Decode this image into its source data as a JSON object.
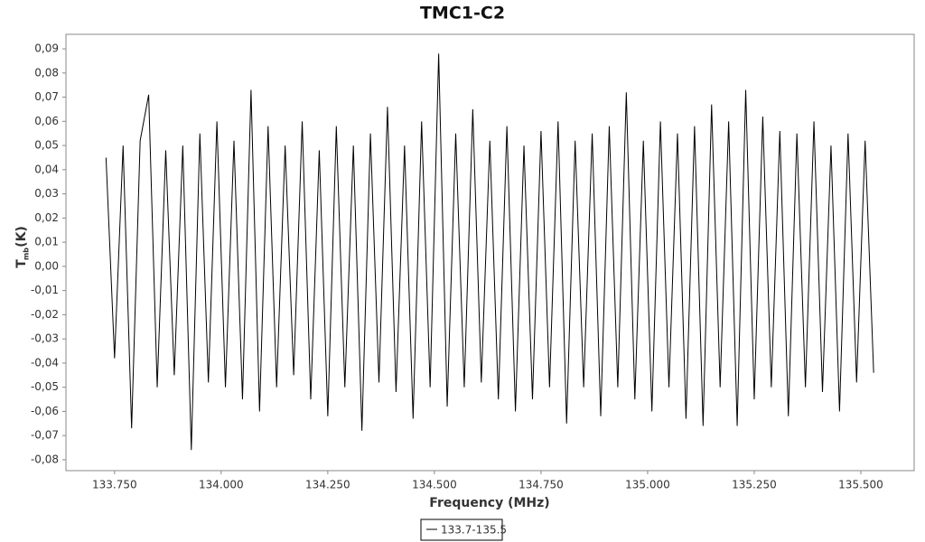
{
  "chart_data": {
    "type": "line",
    "title": "TMC1-C2",
    "x_label": "Frequency (MHz)",
    "y_label": "T",
    "y_label_sub": "mb",
    "y_label_unit": "(K)",
    "xlim": [
      133.636,
      135.625
    ],
    "ylim": [
      -0.0845,
      0.096
    ],
    "xticks": [
      {
        "value": 133.75,
        "label": "133.750"
      },
      {
        "value": 134.0,
        "label": "134.000"
      },
      {
        "value": 134.25,
        "label": "134.250"
      },
      {
        "value": 134.5,
        "label": "134.500"
      },
      {
        "value": 134.75,
        "label": "134.750"
      },
      {
        "value": 135.0,
        "label": "135.000"
      },
      {
        "value": 135.25,
        "label": "135.250"
      },
      {
        "value": 135.5,
        "label": "135.500"
      }
    ],
    "yticks": [
      {
        "value": -0.08,
        "label": "-0,08"
      },
      {
        "value": -0.07,
        "label": "-0,07"
      },
      {
        "value": -0.06,
        "label": "-0,06"
      },
      {
        "value": -0.05,
        "label": "-0,05"
      },
      {
        "value": -0.04,
        "label": "-0,04"
      },
      {
        "value": -0.03,
        "label": "-0,03"
      },
      {
        "value": -0.02,
        "label": "-0,02"
      },
      {
        "value": -0.01,
        "label": "-0,01"
      },
      {
        "value": 0,
        "label": "0,00"
      },
      {
        "value": 0.01,
        "label": "0,01"
      },
      {
        "value": 0.02,
        "label": "0,02"
      },
      {
        "value": 0.03,
        "label": "0,03"
      },
      {
        "value": 0.04,
        "label": "0,04"
      },
      {
        "value": 0.05,
        "label": "0,05"
      },
      {
        "value": 0.06,
        "label": "0,06"
      },
      {
        "value": 0.07,
        "label": "0,07"
      },
      {
        "value": 0.08,
        "label": "0,08"
      },
      {
        "value": 0.09,
        "label": "0,09"
      }
    ],
    "x": [
      133.73,
      133.75,
      133.77,
      133.79,
      133.81,
      133.83,
      133.85,
      133.87,
      133.89,
      133.91,
      133.93,
      133.95,
      133.97,
      133.99,
      134.01,
      134.03,
      134.05,
      134.07,
      134.09,
      134.11,
      134.13,
      134.15,
      134.17,
      134.19,
      134.21,
      134.23,
      134.25,
      134.27,
      134.29,
      134.31,
      134.33,
      134.35,
      134.37,
      134.39,
      134.41,
      134.43,
      134.45,
      134.47,
      134.49,
      134.51,
      134.53,
      134.55,
      134.57,
      134.59,
      134.61,
      134.63,
      134.65,
      134.67,
      134.69,
      134.71,
      134.73,
      134.75,
      134.77,
      134.79,
      134.81,
      134.83,
      134.85,
      134.87,
      134.89,
      134.91,
      134.93,
      134.95,
      134.97,
      134.99,
      135.01,
      135.03,
      135.05,
      135.07,
      135.09,
      135.11,
      135.13,
      135.15,
      135.17,
      135.19,
      135.21,
      135.23,
      135.25,
      135.27,
      135.29,
      135.31,
      135.33,
      135.35,
      135.37,
      135.39,
      135.41,
      135.43,
      135.45,
      135.47,
      135.49,
      135.51,
      135.53
    ],
    "series": [
      {
        "name": "133.7-135.5",
        "color": "#000000",
        "values": [
          0.045,
          -0.038,
          0.05,
          -0.067,
          0.052,
          0.071,
          -0.05,
          0.048,
          -0.045,
          0.05,
          -0.076,
          0.055,
          -0.048,
          0.06,
          -0.05,
          0.052,
          -0.055,
          0.073,
          -0.06,
          0.058,
          -0.05,
          0.05,
          -0.045,
          0.06,
          -0.055,
          0.048,
          -0.062,
          0.058,
          -0.05,
          0.05,
          -0.068,
          0.055,
          -0.048,
          0.066,
          -0.052,
          0.05,
          -0.063,
          0.06,
          -0.05,
          0.088,
          -0.058,
          0.055,
          -0.05,
          0.065,
          -0.048,
          0.052,
          -0.055,
          0.058,
          -0.06,
          0.05,
          -0.055,
          0.056,
          -0.05,
          0.06,
          -0.065,
          0.052,
          -0.05,
          0.055,
          -0.062,
          0.058,
          -0.05,
          0.072,
          -0.055,
          0.052,
          -0.06,
          0.06,
          -0.05,
          0.055,
          -0.063,
          0.058,
          -0.066,
          0.067,
          -0.05,
          0.06,
          -0.066,
          0.073,
          -0.055,
          0.062,
          -0.05,
          0.056,
          -0.062,
          0.055,
          -0.05,
          0.06,
          -0.052,
          0.05,
          -0.06,
          0.055,
          -0.048,
          0.052,
          -0.044
        ]
      }
    ]
  }
}
